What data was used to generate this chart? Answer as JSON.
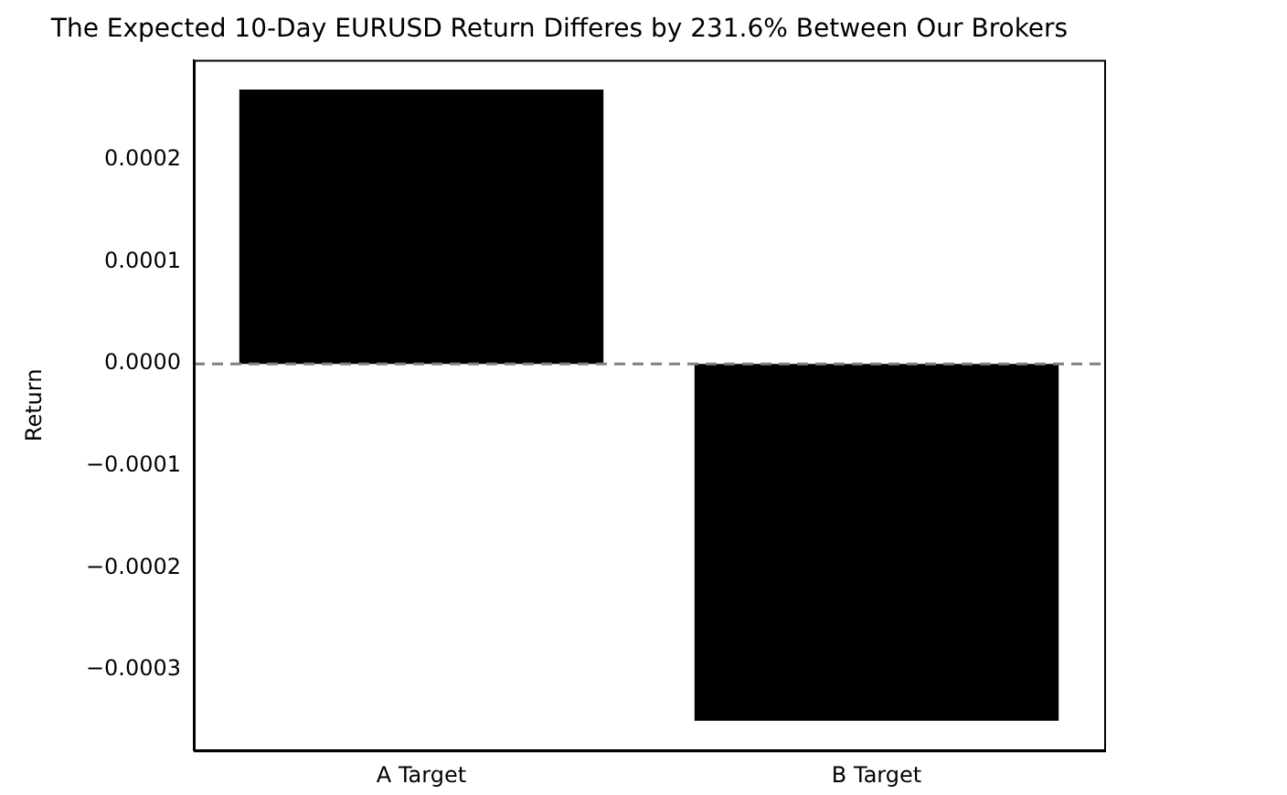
{
  "chart_data": {
    "type": "bar",
    "title": "The Expected 10-Day EURUSD Return Differes by 231.6% Between Our Brokers",
    "ylabel": "Return",
    "categories": [
      "A Target",
      "B Target"
    ],
    "values": [
      0.000269,
      -0.00035
    ],
    "color": "#000000",
    "ylim": [
      -0.000379,
      0.000298
    ],
    "yticks": [
      {
        "value": -0.0003,
        "label": "−0.0003"
      },
      {
        "value": -0.0002,
        "label": "−0.0002"
      },
      {
        "value": -0.0001,
        "label": "−0.0001"
      },
      {
        "value": 0,
        "label": "0.0000"
      },
      {
        "value": 0.0001,
        "label": "0.0001"
      },
      {
        "value": 0.0002,
        "label": "0.0002"
      }
    ],
    "ref_lines": [
      {
        "axis": "y",
        "value": 0,
        "color": "#808080",
        "line_style": "dashed"
      }
    ],
    "grid": false,
    "legend": false
  }
}
